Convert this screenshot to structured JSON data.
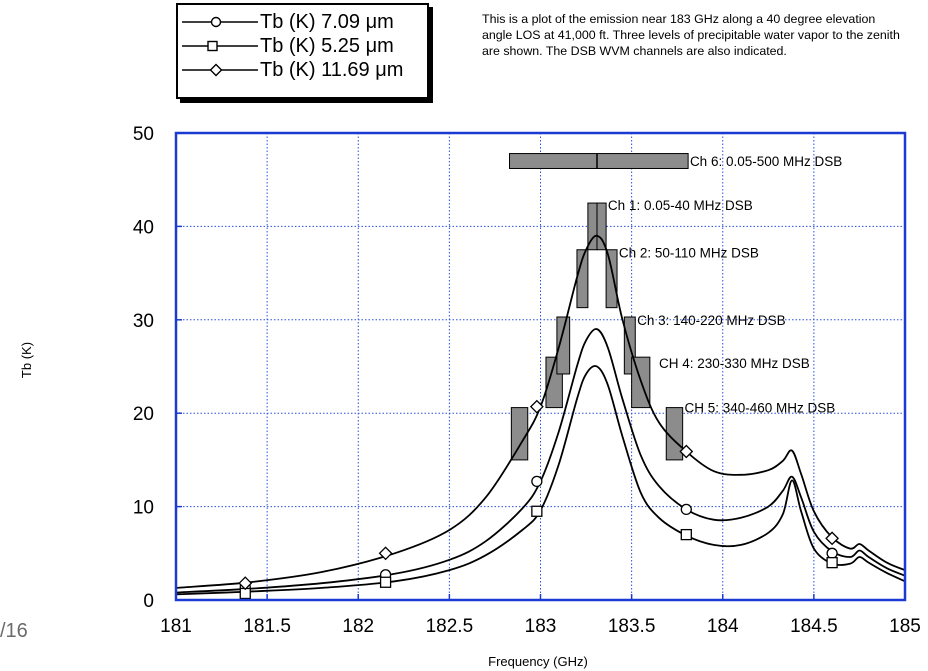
{
  "slide_number": "/16",
  "note": "This is a plot of the emission near 183 GHz along a 40 degree elevation angle LOS at 41,000 ft. Three levels of precipitable water vapor to the zenith are shown. The DSB WVM channels are also indicated.",
  "colors": {
    "frame": "#1a3ad1",
    "grid": "#2a4fdc",
    "curve": "#000000",
    "bar": "#8c8c8c",
    "text": "#000000",
    "slide_number": "#6b6b6b"
  },
  "chart_data": {
    "type": "line",
    "xlabel": "Frequency (GHz)",
    "ylabel": "Tb (K)",
    "xlim": [
      181,
      185
    ],
    "ylim": [
      0,
      50
    ],
    "x_ticks": [
      "181",
      "181.5",
      "182",
      "182.5",
      "183",
      "183.5",
      "184",
      "184.5",
      "185"
    ],
    "y_ticks": [
      "0",
      "10",
      "20",
      "30",
      "40",
      "50"
    ],
    "grid": true,
    "legend_position": "top-left, outside",
    "series": [
      {
        "name": "Tb (K) 7.09 μm",
        "marker": "circle",
        "x": [
          181,
          181.4,
          181.8,
          182.2,
          182.5,
          182.7,
          182.9,
          183.0,
          183.1,
          183.2,
          183.25,
          183.31,
          183.37,
          183.45,
          183.55,
          183.65,
          183.8,
          183.95,
          184.1,
          184.25,
          184.33,
          184.38,
          184.43,
          184.5,
          184.6,
          184.7,
          184.75,
          184.8,
          184.9,
          185
        ],
        "y": [
          0.8,
          1.2,
          1.8,
          2.8,
          4.3,
          6.3,
          9.8,
          12.7,
          18.0,
          25.0,
          27.8,
          29.0,
          27.0,
          21.5,
          15.5,
          12.2,
          9.7,
          8.6,
          8.8,
          10.0,
          11.7,
          13.2,
          11.0,
          7.3,
          5.2,
          4.6,
          5.3,
          4.6,
          3.4,
          2.6
        ],
        "markers_x": [
          181.38,
          182.15,
          182.98,
          183.8,
          184.6
        ],
        "markers_y": [
          1.4,
          2.7,
          12.7,
          9.7,
          5.0
        ]
      },
      {
        "name": "Tb (K) 5.25 μm",
        "marker": "square",
        "x": [
          181,
          181.4,
          181.8,
          182.2,
          182.5,
          182.7,
          182.9,
          183.0,
          183.1,
          183.2,
          183.25,
          183.31,
          183.37,
          183.45,
          183.55,
          183.65,
          183.8,
          183.95,
          184.1,
          184.25,
          184.33,
          184.38,
          184.43,
          184.5,
          184.6,
          184.7,
          184.75,
          184.8,
          184.9,
          185
        ],
        "y": [
          0.6,
          0.9,
          1.3,
          2.0,
          3.2,
          4.8,
          7.5,
          9.6,
          14.5,
          21.5,
          24.2,
          25.0,
          23.0,
          17.5,
          11.5,
          8.8,
          6.9,
          5.9,
          5.9,
          7.2,
          9.2,
          12.8,
          9.5,
          5.5,
          3.9,
          3.9,
          4.6,
          4.0,
          2.9,
          2.0
        ],
        "markers_x": [
          181.38,
          182.15,
          182.98,
          183.8,
          184.6
        ],
        "markers_y": [
          0.7,
          1.9,
          9.5,
          7.0,
          4.0
        ]
      },
      {
        "name": "Tb (K) 11.69 μm",
        "marker": "diamond",
        "x": [
          181,
          181.4,
          181.8,
          182.2,
          182.5,
          182.7,
          182.9,
          183.0,
          183.1,
          183.2,
          183.25,
          183.31,
          183.37,
          183.45,
          183.55,
          183.65,
          183.8,
          183.95,
          184.1,
          184.25,
          184.33,
          184.38,
          184.43,
          184.5,
          184.6,
          184.7,
          184.75,
          184.8,
          184.9,
          185
        ],
        "y": [
          1.3,
          1.9,
          3.0,
          5.0,
          7.5,
          11.0,
          17.0,
          20.7,
          27.0,
          34.5,
          37.5,
          39.0,
          37.0,
          30.0,
          23.5,
          19.0,
          15.9,
          13.8,
          13.4,
          13.9,
          14.9,
          16.0,
          13.5,
          9.5,
          6.7,
          5.5,
          6.0,
          5.3,
          4.0,
          3.2
        ],
        "markers_x": [
          181.38,
          182.15,
          182.98,
          183.8,
          184.6
        ],
        "markers_y": [
          1.8,
          5.0,
          20.7,
          15.9,
          6.6
        ]
      }
    ],
    "channel_bars": [
      {
        "x0": 182.84,
        "x1": 182.93,
        "y0": 15,
        "y1": 20.6
      },
      {
        "x0": 183.03,
        "x1": 183.12,
        "y0": 20.6,
        "y1": 26
      },
      {
        "x0": 183.09,
        "x1": 183.16,
        "y0": 24.2,
        "y1": 30.3
      },
      {
        "x0": 183.2,
        "x1": 183.26,
        "y0": 31.3,
        "y1": 37.5
      },
      {
        "x0": 183.26,
        "x1": 183.31,
        "y0": 37.5,
        "y1": 42.5
      },
      {
        "x0": 183.31,
        "x1": 183.36,
        "y0": 37.5,
        "y1": 42.5
      },
      {
        "x0": 183.36,
        "x1": 183.42,
        "y0": 31.3,
        "y1": 37.5
      },
      {
        "x0": 183.46,
        "x1": 183.52,
        "y0": 24.2,
        "y1": 30.3
      },
      {
        "x0": 183.5,
        "x1": 183.6,
        "y0": 20.6,
        "y1": 26
      },
      {
        "x0": 183.69,
        "x1": 183.78,
        "y0": 15,
        "y1": 20.6
      }
    ],
    "wide_channel": {
      "x0": 182.83,
      "x1": 183.81,
      "y0": 46.2,
      "y1": 47.8,
      "divider_x": 183.31
    },
    "annotations": [
      {
        "text": "Ch 6:   0.05-500 MHz DSB",
        "x": 183.82,
        "y": 47.0
      },
      {
        "text": "Ch 1:   0.05-40 MHz DSB",
        "x": 183.37,
        "y": 42.3
      },
      {
        "text": "Ch 2:   50-110 MHz DSB",
        "x": 183.43,
        "y": 37.2
      },
      {
        "text": "Ch 3:   140-220 MHz DSB",
        "x": 183.53,
        "y": 30.0
      },
      {
        "text": "CH 4:   230-330 MHz DSB",
        "x": 183.65,
        "y": 25.4
      },
      {
        "text": "CH 5:   340-460 MHz DSB",
        "x": 183.79,
        "y": 20.6
      }
    ]
  }
}
